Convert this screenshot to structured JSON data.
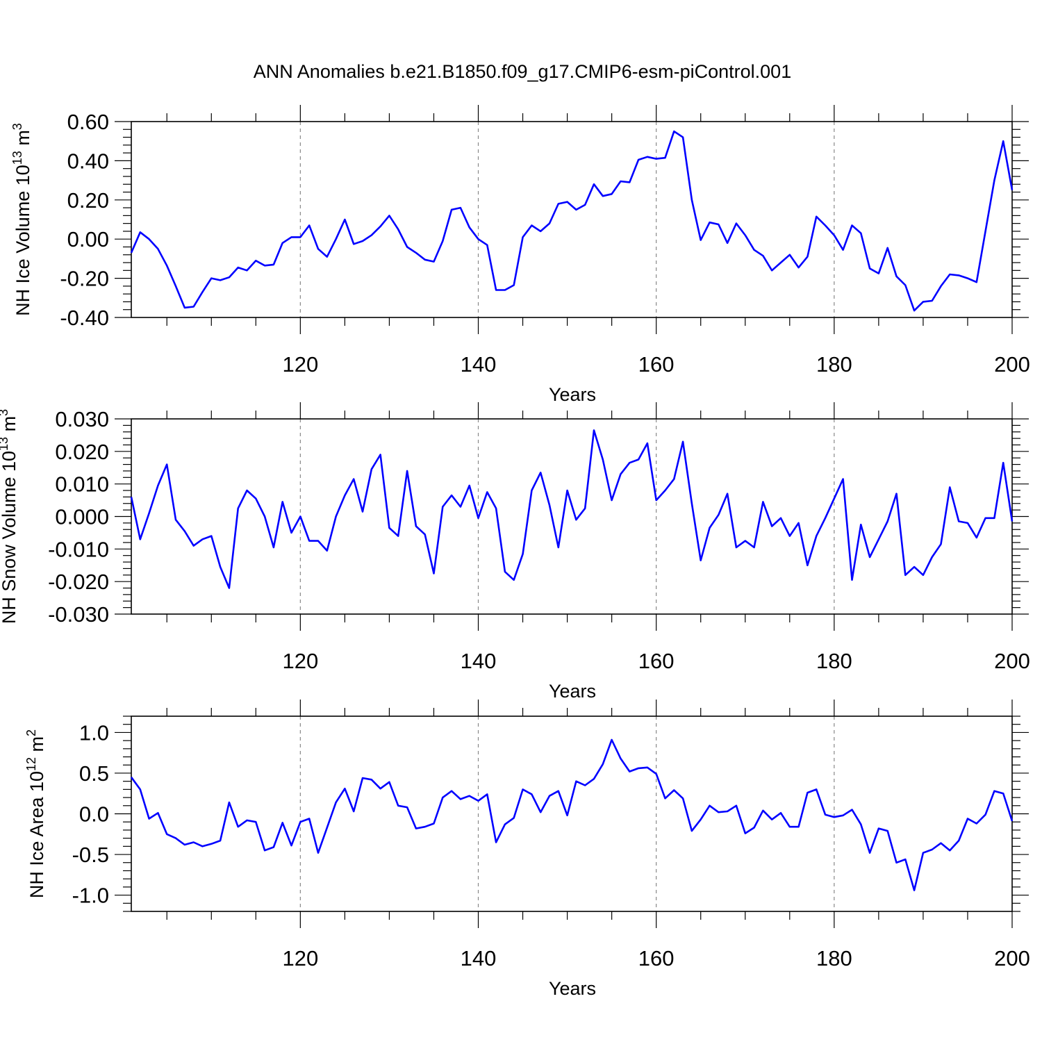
{
  "title": "ANN Anomalies b.e21.B1850.f09_g17.CMIP6-esm-piControl.001",
  "chart_data": [
    {
      "type": "line",
      "ylabel": "NH Ice Volume 10",
      "ylabel_sup": "13",
      "ylabel_unit": " m",
      "ylabel_unit_sup": "3",
      "xlabel": "Years",
      "xlim": [
        101,
        200
      ],
      "ylim": [
        -0.4,
        0.6
      ],
      "yticks": [
        -0.4,
        -0.2,
        0.0,
        0.2,
        0.4,
        0.6
      ],
      "ytick_labels": [
        "-0.40",
        "-0.20",
        "0.00",
        "0.20",
        "0.40",
        "0.60"
      ],
      "xticks": [
        120,
        140,
        160,
        180,
        200
      ],
      "xtick_labels": [
        "120",
        "140",
        "160",
        "180",
        "200"
      ],
      "color": "#0000ff",
      "x": [
        101,
        102,
        103,
        104,
        105,
        106,
        107,
        108,
        109,
        110,
        111,
        112,
        113,
        114,
        115,
        116,
        117,
        118,
        119,
        120,
        121,
        122,
        123,
        124,
        125,
        126,
        127,
        128,
        129,
        130,
        131,
        132,
        133,
        134,
        135,
        136,
        137,
        138,
        139,
        140,
        141,
        142,
        143,
        144,
        145,
        146,
        147,
        148,
        149,
        150,
        151,
        152,
        153,
        154,
        155,
        156,
        157,
        158,
        159,
        160,
        161,
        162,
        163,
        164,
        165,
        166,
        167,
        168,
        169,
        170,
        171,
        172,
        173,
        174,
        175,
        176,
        177,
        178,
        179,
        180,
        181,
        182,
        183,
        184,
        185,
        186,
        187,
        188,
        189,
        190,
        191,
        192,
        193,
        194,
        195,
        196,
        197,
        198,
        199,
        200
      ],
      "y": [
        -0.07,
        0.035,
        0.0,
        -0.05,
        -0.135,
        -0.24,
        -0.35,
        -0.345,
        -0.27,
        -0.2,
        -0.21,
        -0.195,
        -0.145,
        -0.16,
        -0.11,
        -0.135,
        -0.13,
        -0.02,
        0.01,
        0.01,
        0.07,
        -0.05,
        -0.09,
        0.0,
        0.1,
        -0.025,
        -0.01,
        0.02,
        0.065,
        0.12,
        0.05,
        -0.04,
        -0.07,
        -0.105,
        -0.115,
        -0.01,
        0.15,
        0.16,
        0.06,
        0.0,
        -0.03,
        -0.26,
        -0.26,
        -0.235,
        0.01,
        0.07,
        0.04,
        0.08,
        0.18,
        0.19,
        0.15,
        0.175,
        0.28,
        0.22,
        0.23,
        0.295,
        0.29,
        0.405,
        0.42,
        0.41,
        0.415,
        0.55,
        0.52,
        0.2,
        -0.005,
        0.085,
        0.075,
        -0.02,
        0.08,
        0.02,
        -0.055,
        -0.085,
        -0.16,
        -0.12,
        -0.08,
        -0.145,
        -0.09,
        0.115,
        0.07,
        0.02,
        -0.055,
        0.07,
        0.03,
        -0.15,
        -0.175,
        -0.045,
        -0.19,
        -0.235,
        -0.365,
        -0.32,
        -0.315,
        -0.24,
        -0.18,
        -0.185,
        -0.2,
        -0.22,
        0.04,
        0.3,
        0.5,
        0.25
      ]
    },
    {
      "type": "line",
      "ylabel": "NH Snow Volume 10",
      "ylabel_sup": "13",
      "ylabel_unit": " m",
      "ylabel_unit_sup": "3",
      "xlabel": "Years",
      "xlim": [
        101,
        200
      ],
      "ylim": [
        -0.03,
        0.03
      ],
      "yticks": [
        -0.03,
        -0.02,
        -0.01,
        0.0,
        0.01,
        0.02,
        0.03
      ],
      "ytick_labels": [
        "-0.030",
        "-0.020",
        "-0.010",
        "0.000",
        "0.010",
        "0.020",
        "0.030"
      ],
      "xticks": [
        120,
        140,
        160,
        180,
        200
      ],
      "xtick_labels": [
        "120",
        "140",
        "160",
        "180",
        "200"
      ],
      "color": "#0000ff",
      "x": [
        101,
        102,
        103,
        104,
        105,
        106,
        107,
        108,
        109,
        110,
        111,
        112,
        113,
        114,
        115,
        116,
        117,
        118,
        119,
        120,
        121,
        122,
        123,
        124,
        125,
        126,
        127,
        128,
        129,
        130,
        131,
        132,
        133,
        134,
        135,
        136,
        137,
        138,
        139,
        140,
        141,
        142,
        143,
        144,
        145,
        146,
        147,
        148,
        149,
        150,
        151,
        152,
        153,
        154,
        155,
        156,
        157,
        158,
        159,
        160,
        161,
        162,
        163,
        164,
        165,
        166,
        167,
        168,
        169,
        170,
        171,
        172,
        173,
        174,
        175,
        176,
        177,
        178,
        179,
        180,
        181,
        182,
        183,
        184,
        185,
        186,
        187,
        188,
        189,
        190,
        191,
        192,
        193,
        194,
        195,
        196,
        197,
        198,
        199,
        200
      ],
      "y": [
        0.006,
        -0.007,
        0.001,
        0.0095,
        0.016,
        -0.001,
        -0.0045,
        -0.009,
        -0.007,
        -0.006,
        -0.0155,
        -0.022,
        0.0025,
        0.008,
        0.0055,
        0.0,
        -0.0095,
        0.0045,
        -0.005,
        0.0,
        -0.0075,
        -0.0075,
        -0.0105,
        0.0,
        0.0065,
        0.0115,
        0.0015,
        0.0145,
        0.019,
        -0.0035,
        -0.006,
        0.014,
        -0.003,
        -0.0055,
        -0.0175,
        0.003,
        0.0065,
        0.003,
        0.0095,
        -0.0005,
        0.0075,
        0.0025,
        -0.017,
        -0.0195,
        -0.0115,
        0.008,
        0.0135,
        0.0035,
        -0.0095,
        0.008,
        -0.001,
        0.0025,
        0.0265,
        0.0175,
        0.005,
        0.013,
        0.0165,
        0.0175,
        0.0225,
        0.005,
        0.008,
        0.0115,
        0.023,
        0.004,
        -0.0135,
        -0.0035,
        0.0005,
        0.007,
        -0.0095,
        -0.0075,
        -0.0095,
        0.0045,
        -0.003,
        -0.0005,
        -0.006,
        -0.002,
        -0.015,
        -0.006,
        -0.0005,
        0.0055,
        0.0115,
        -0.0195,
        -0.0025,
        -0.0125,
        -0.007,
        -0.0015,
        0.007,
        -0.018,
        -0.0155,
        -0.018,
        -0.0125,
        -0.0085,
        0.009,
        -0.0015,
        -0.002,
        -0.0065,
        -0.0005,
        -0.0005,
        0.0165,
        -0.0015
      ]
    },
    {
      "type": "line",
      "ylabel": "NH Ice Area 10",
      "ylabel_sup": "12",
      "ylabel_unit": " m",
      "ylabel_unit_sup": "2",
      "xlabel": "Years",
      "xlim": [
        101,
        200
      ],
      "ylim": [
        -1.2,
        1.2
      ],
      "yticks": [
        -1.0,
        -0.5,
        0.0,
        0.5,
        1.0
      ],
      "ytick_labels": [
        "-1.0",
        "-0.5",
        "0.0",
        "0.5",
        "1.0"
      ],
      "xticks": [
        120,
        140,
        160,
        180,
        200
      ],
      "xtick_labels": [
        "120",
        "140",
        "160",
        "180",
        "200"
      ],
      "color": "#0000ff",
      "x": [
        101,
        102,
        103,
        104,
        105,
        106,
        107,
        108,
        109,
        110,
        111,
        112,
        113,
        114,
        115,
        116,
        117,
        118,
        119,
        120,
        121,
        122,
        123,
        124,
        125,
        126,
        127,
        128,
        129,
        130,
        131,
        132,
        133,
        134,
        135,
        136,
        137,
        138,
        139,
        140,
        141,
        142,
        143,
        144,
        145,
        146,
        147,
        148,
        149,
        150,
        151,
        152,
        153,
        154,
        155,
        156,
        157,
        158,
        159,
        160,
        161,
        162,
        163,
        164,
        165,
        166,
        167,
        168,
        169,
        170,
        171,
        172,
        173,
        174,
        175,
        176,
        177,
        178,
        179,
        180,
        181,
        182,
        183,
        184,
        185,
        186,
        187,
        188,
        189,
        190,
        191,
        192,
        193,
        194,
        195,
        196,
        197,
        198,
        199,
        200
      ],
      "y": [
        0.45,
        0.3,
        -0.06,
        0.01,
        -0.25,
        -0.3,
        -0.38,
        -0.35,
        -0.4,
        -0.37,
        -0.33,
        0.14,
        -0.16,
        -0.08,
        -0.1,
        -0.45,
        -0.41,
        -0.11,
        -0.39,
        -0.1,
        -0.06,
        -0.48,
        -0.17,
        0.14,
        0.31,
        0.03,
        0.44,
        0.42,
        0.31,
        0.39,
        0.1,
        0.08,
        -0.18,
        -0.16,
        -0.12,
        0.2,
        0.28,
        0.18,
        0.22,
        0.16,
        0.24,
        -0.35,
        -0.13,
        -0.05,
        0.3,
        0.24,
        0.02,
        0.22,
        0.28,
        -0.02,
        0.4,
        0.35,
        0.43,
        0.61,
        0.91,
        0.68,
        0.52,
        0.56,
        0.57,
        0.49,
        0.19,
        0.29,
        0.19,
        -0.21,
        -0.07,
        0.1,
        0.02,
        0.03,
        0.1,
        -0.24,
        -0.17,
        0.04,
        -0.07,
        0.01,
        -0.16,
        -0.16,
        0.26,
        0.3,
        -0.01,
        -0.04,
        -0.02,
        0.05,
        -0.13,
        -0.48,
        -0.18,
        -0.21,
        -0.6,
        -0.56,
        -0.94,
        -0.48,
        -0.44,
        -0.36,
        -0.45,
        -0.33,
        -0.06,
        -0.12,
        -0.01,
        0.28,
        0.25,
        -0.09
      ]
    }
  ]
}
